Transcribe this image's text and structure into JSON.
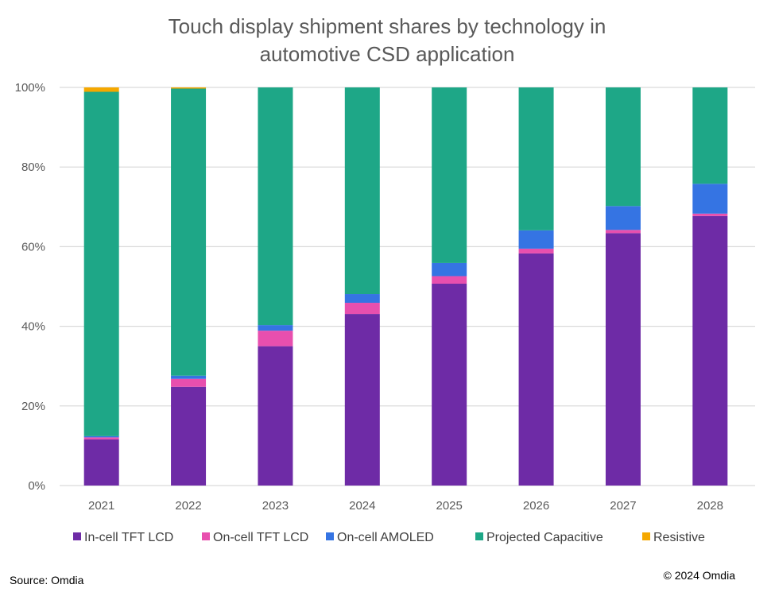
{
  "chart_data": {
    "type": "bar",
    "stacked": true,
    "title": [
      "Touch display shipment shares by technology in",
      "automotive CSD application"
    ],
    "xlabel": "",
    "ylabel": "",
    "ylim": [
      0,
      100
    ],
    "yticks": [
      "0%",
      "20%",
      "40%",
      "60%",
      "80%",
      "100%"
    ],
    "grid": true,
    "legend_position": "bottom",
    "categories": [
      "2021",
      "2022",
      "2023",
      "2024",
      "2025",
      "2026",
      "2027",
      "2028"
    ],
    "series": [
      {
        "name": "In-cell TFT LCD",
        "color": "#6E2BA6",
        "values": [
          11.6,
          24.8,
          35.0,
          43.1,
          50.7,
          58.3,
          63.4,
          67.7
        ]
      },
      {
        "name": "On-cell TFT LCD",
        "color": "#E84FAE",
        "values": [
          0.5,
          2.0,
          3.9,
          2.8,
          1.9,
          1.2,
          0.8,
          0.6
        ]
      },
      {
        "name": "On-cell AMOLED",
        "color": "#3574E3",
        "values": [
          0.3,
          0.8,
          1.4,
          2.2,
          3.3,
          4.6,
          6.0,
          7.5
        ]
      },
      {
        "name": "Projected Capacitive",
        "color": "#1EA787",
        "values": [
          86.5,
          72.1,
          59.7,
          51.9,
          44.1,
          35.9,
          29.8,
          24.2
        ]
      },
      {
        "name": "Resistive",
        "color": "#F5A800",
        "values": [
          1.1,
          0.3,
          0,
          0,
          0,
          0,
          0,
          0
        ]
      }
    ]
  },
  "footer": {
    "source": "Source: Omdia",
    "copyright": "© 2024 Omdia"
  }
}
